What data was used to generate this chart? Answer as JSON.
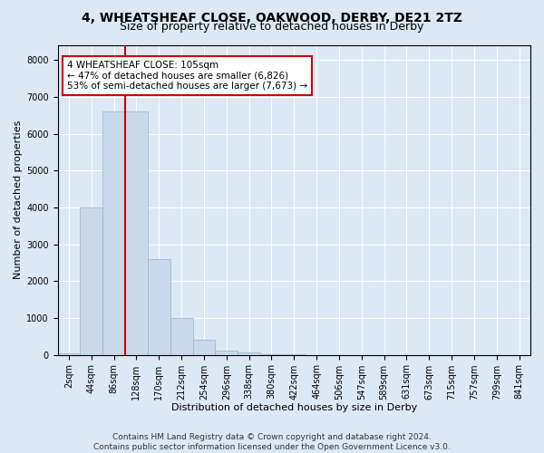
{
  "title_line1": "4, WHEATSHEAF CLOSE, OAKWOOD, DERBY, DE21 2TZ",
  "title_line2": "Size of property relative to detached houses in Derby",
  "xlabel": "Distribution of detached houses by size in Derby",
  "ylabel": "Number of detached properties",
  "bar_color": "#c9d9ea",
  "bar_edge_color": "#9ab0c8",
  "categories": [
    "2sqm",
    "44sqm",
    "86sqm",
    "128sqm",
    "170sqm",
    "212sqm",
    "254sqm",
    "296sqm",
    "338sqm",
    "380sqm",
    "422sqm",
    "464sqm",
    "506sqm",
    "547sqm",
    "589sqm",
    "631sqm",
    "673sqm",
    "715sqm",
    "757sqm",
    "799sqm",
    "841sqm"
  ],
  "values": [
    50,
    4000,
    6600,
    6600,
    2600,
    1000,
    400,
    120,
    60,
    20,
    5,
    0,
    0,
    0,
    0,
    0,
    0,
    0,
    0,
    0,
    0
  ],
  "ylim": [
    0,
    8400
  ],
  "yticks": [
    0,
    1000,
    2000,
    3000,
    4000,
    5000,
    6000,
    7000,
    8000
  ],
  "property_line_x": 2.5,
  "annotation_text": "4 WHEATSHEAF CLOSE: 105sqm\n← 47% of detached houses are smaller (6,826)\n53% of semi-detached houses are larger (7,673) →",
  "annotation_box_facecolor": "#ffffff",
  "annotation_box_edgecolor": "#cc0000",
  "vline_color": "#cc0000",
  "footer_line1": "Contains HM Land Registry data © Crown copyright and database right 2024.",
  "footer_line2": "Contains public sector information licensed under the Open Government Licence v3.0.",
  "background_color": "#dce8f4",
  "plot_bg_color": "#dce8f4",
  "grid_color": "#ffffff",
  "title1_fontsize": 10,
  "title2_fontsize": 9,
  "axis_label_fontsize": 8,
  "tick_fontsize": 7,
  "annotation_fontsize": 7.5,
  "footer_fontsize": 6.5
}
